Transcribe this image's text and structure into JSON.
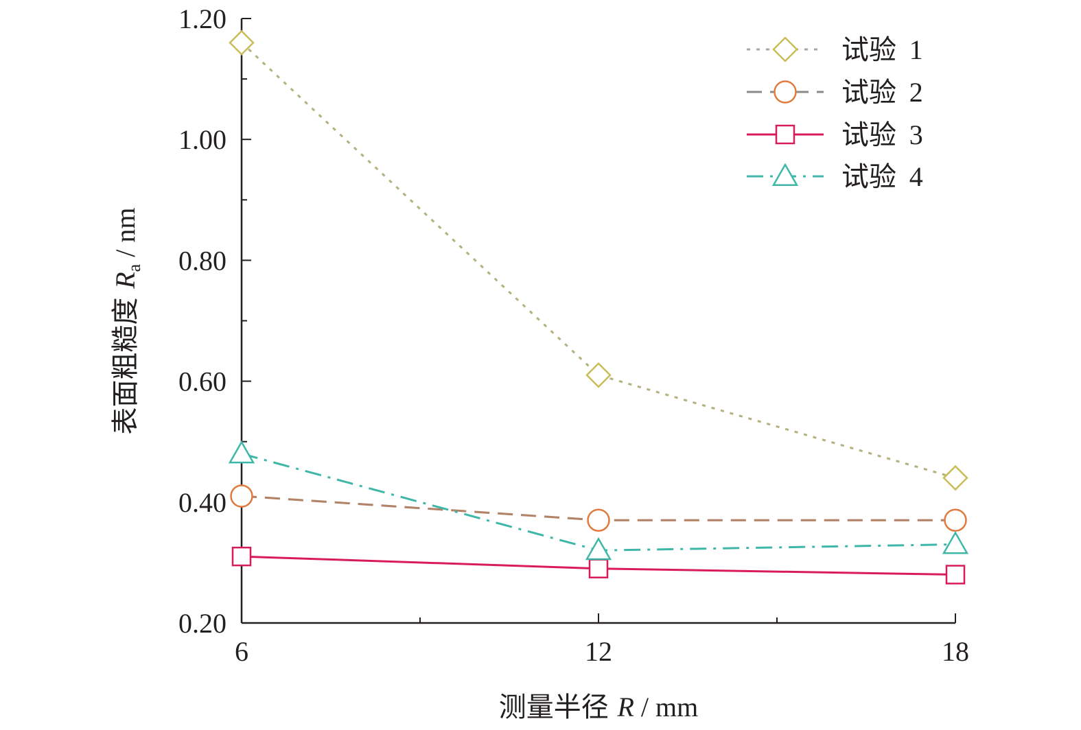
{
  "chart_data": {
    "type": "line",
    "xlabel": {
      "prefix": "测量半径 ",
      "symbol": "R",
      "unit": " / mm"
    },
    "ylabel": {
      "prefix": "表面粗糙度 ",
      "symbol": "R",
      "subscript": "a",
      "unit": " / nm"
    },
    "x": [
      6,
      12,
      18
    ],
    "xlim": [
      6,
      18
    ],
    "ylim": [
      0.2,
      1.2
    ],
    "x_ticks": [
      "6",
      "12",
      "18"
    ],
    "y_ticks": [
      "0.20",
      "0.40",
      "0.60",
      "0.80",
      "1.00",
      "1.20"
    ],
    "legend_position": "top-right",
    "series": [
      {
        "name": "试验 1",
        "values": [
          1.16,
          0.61,
          0.44
        ],
        "color": "#c8bd58",
        "marker": "diamond",
        "dash": "dotted"
      },
      {
        "name": "试验 2",
        "values": [
          0.41,
          0.37,
          0.37
        ],
        "color": "#e07a3e",
        "marker": "circle",
        "dash": "dashed"
      },
      {
        "name": "试验 3",
        "values": [
          0.31,
          0.29,
          0.28
        ],
        "color": "#d81b5c",
        "marker": "square",
        "dash": "solid"
      },
      {
        "name": "试验 4",
        "values": [
          0.48,
          0.32,
          0.33
        ],
        "color": "#3fb7a8",
        "marker": "triangle",
        "dash": "dashdot"
      }
    ]
  }
}
